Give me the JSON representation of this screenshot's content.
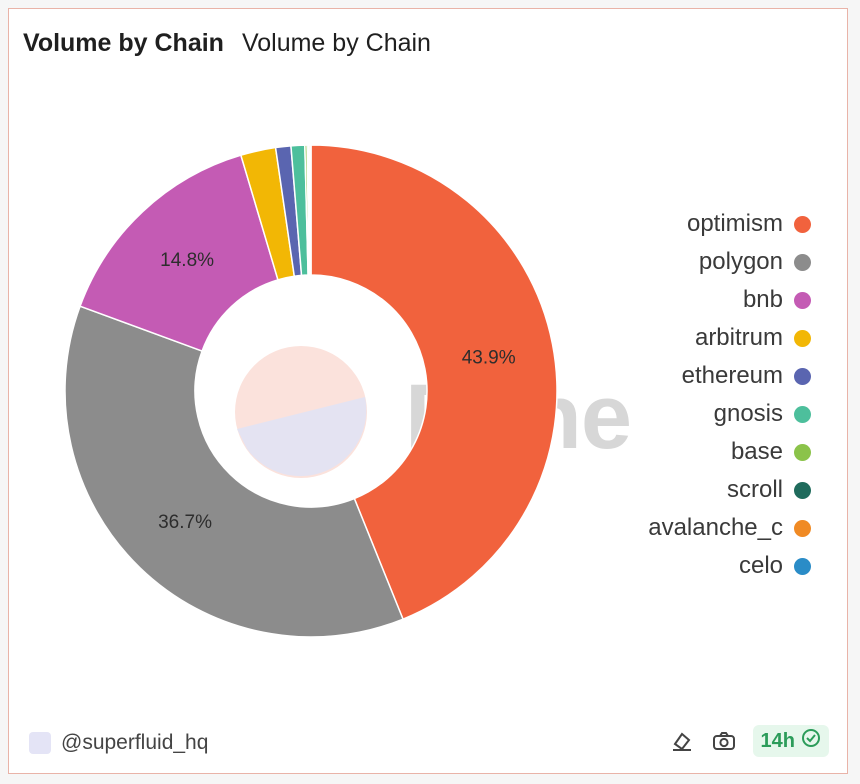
{
  "title": "Volume by Chain",
  "subtitle": "Volume by Chain",
  "watermark": "Dune",
  "footer": {
    "username": "@superfluid_hq",
    "badge_text": "14h",
    "icons": [
      "eraser-icon",
      "camera-icon",
      "check-circle-icon"
    ]
  },
  "chart_data": {
    "type": "pie",
    "variant": "donut",
    "title": "Volume by Chain",
    "legend_position": "right",
    "slices": [
      {
        "label": "optimism",
        "value": 43.9,
        "color": "#f1623d",
        "data_label": "43.9%"
      },
      {
        "label": "polygon",
        "value": 36.7,
        "color": "#8c8c8c",
        "data_label": "36.7%"
      },
      {
        "label": "bnb",
        "value": 14.8,
        "color": "#c45bb4",
        "data_label": "14.8%"
      },
      {
        "label": "arbitrum",
        "value": 2.3,
        "color": "#f2b705",
        "data_label": ""
      },
      {
        "label": "ethereum",
        "value": 1.0,
        "color": "#5a65b0",
        "data_label": ""
      },
      {
        "label": "gnosis",
        "value": 0.9,
        "color": "#4dbf9c",
        "data_label": ""
      },
      {
        "label": "base",
        "value": 0.15,
        "color": "#8bc34a",
        "data_label": ""
      },
      {
        "label": "scroll",
        "value": 0.1,
        "color": "#1f6b5c",
        "data_label": ""
      },
      {
        "label": "avalanche_c",
        "value": 0.1,
        "color": "#f08a24",
        "data_label": ""
      },
      {
        "label": "celo",
        "value": 0.05,
        "color": "#2a8cc7",
        "data_label": ""
      }
    ]
  }
}
